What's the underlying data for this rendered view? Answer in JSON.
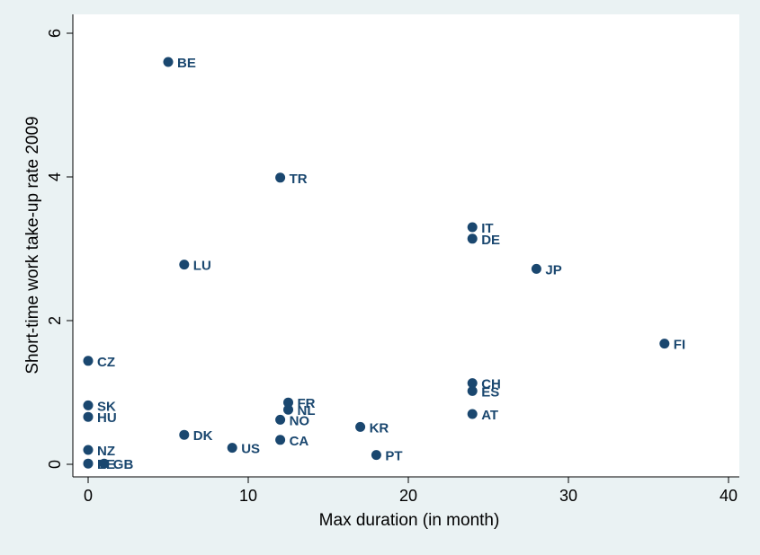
{
  "chart_data": {
    "type": "scatter",
    "title": "",
    "xlabel": "Max duration (in month)",
    "ylabel": "Short-time work take-up rate 2009",
    "xlim": [
      0,
      40
    ],
    "ylim": [
      0,
      6
    ],
    "xticks": [
      0,
      10,
      20,
      30,
      40
    ],
    "yticks": [
      0,
      2,
      4,
      6
    ],
    "grid": false,
    "legend": "none",
    "colors": {
      "background": "#eaf2f3",
      "plot_area": "#ffffff",
      "marker": "#1a476f",
      "label": "#1a476f",
      "axis": "#000000"
    },
    "points": [
      {
        "label": "BE",
        "x": 5,
        "y": 5.6
      },
      {
        "label": "TR",
        "x": 12,
        "y": 3.99
      },
      {
        "label": "IT",
        "x": 24,
        "y": 3.3
      },
      {
        "label": "DE",
        "x": 24,
        "y": 3.14
      },
      {
        "label": "LU",
        "x": 6,
        "y": 2.78
      },
      {
        "label": "JP",
        "x": 28,
        "y": 2.72
      },
      {
        "label": "FI",
        "x": 36,
        "y": 1.68
      },
      {
        "label": "CZ",
        "x": 0,
        "y": 1.44
      },
      {
        "label": "CH",
        "x": 24,
        "y": 1.13
      },
      {
        "label": "ES",
        "x": 24,
        "y": 1.02
      },
      {
        "label": "FR",
        "x": 12.5,
        "y": 0.86
      },
      {
        "label": "SK",
        "x": 0,
        "y": 0.82
      },
      {
        "label": "NL",
        "x": 12.5,
        "y": 0.76
      },
      {
        "label": "AT",
        "x": 24,
        "y": 0.7
      },
      {
        "label": "HU",
        "x": 0,
        "y": 0.66
      },
      {
        "label": "NO",
        "x": 12,
        "y": 0.62
      },
      {
        "label": "KR",
        "x": 17,
        "y": 0.52
      },
      {
        "label": "DK",
        "x": 6,
        "y": 0.41
      },
      {
        "label": "CA",
        "x": 12,
        "y": 0.34
      },
      {
        "label": "US",
        "x": 9,
        "y": 0.23
      },
      {
        "label": "NZ",
        "x": 0,
        "y": 0.2
      },
      {
        "label": "PT",
        "x": 18,
        "y": 0.13
      },
      {
        "label": "EE",
        "x": 0,
        "y": 0.01
      },
      {
        "label": "GB",
        "x": 1,
        "y": 0.01
      }
    ]
  }
}
